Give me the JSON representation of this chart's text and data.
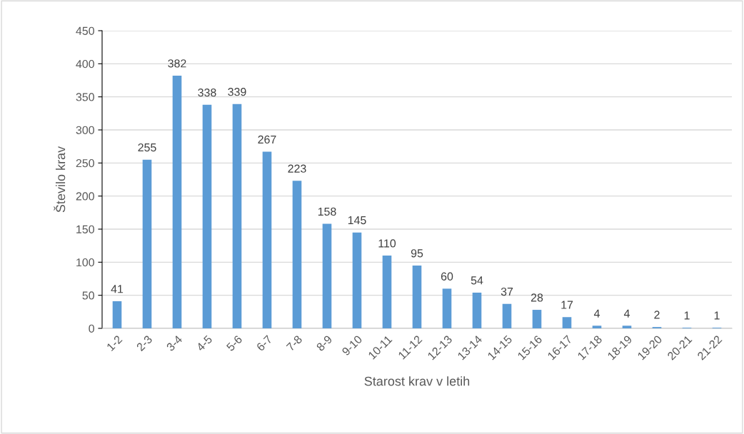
{
  "chart_data": {
    "type": "bar",
    "xlabel": "Starost krav v letih",
    "ylabel": "Število krav",
    "categories": [
      "1-2",
      "2-3",
      "3-4",
      "4-5",
      "5-6",
      "6-7",
      "7-8",
      "8-9",
      "9-10",
      "10-11",
      "11-12",
      "12-13",
      "13-14",
      "14-15",
      "15-16",
      "16-17",
      "17-18",
      "18-19",
      "19-20",
      "20-21",
      "21-22"
    ],
    "values": [
      41,
      255,
      382,
      338,
      339,
      267,
      223,
      158,
      145,
      110,
      95,
      60,
      54,
      37,
      28,
      17,
      4,
      4,
      2,
      1,
      1
    ],
    "color": "#5b9bd5",
    "ylim": [
      0,
      450
    ],
    "yticks": [
      0,
      50,
      100,
      150,
      200,
      250,
      300,
      350,
      400,
      450
    ],
    "grid": "y",
    "data_labels": true
  }
}
